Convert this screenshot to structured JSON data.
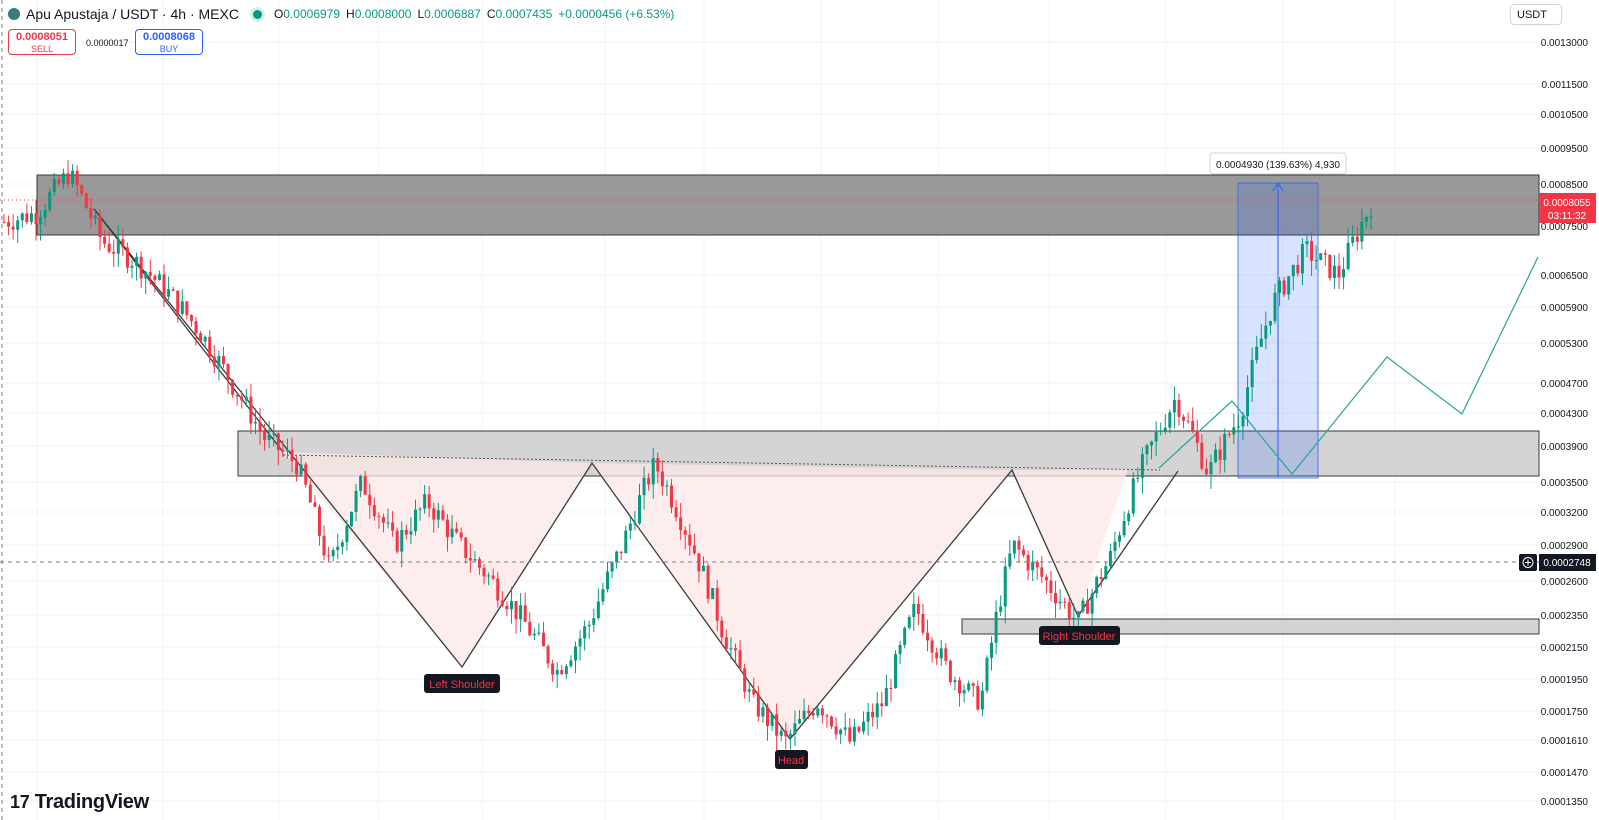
{
  "header": {
    "symbol": "Apu Apustaja / USDT · 4h · MEXC",
    "o_label": "O",
    "o_value": "0.0006979",
    "h_label": "H",
    "h_value": "0.0008000",
    "l_label": "L",
    "l_value": "0.0006887",
    "c_label": "C",
    "c_value": "0.0007435",
    "change": "+0.0000456 (+6.53%)",
    "status_color": "#089981"
  },
  "trade": {
    "sell_price": "0.0008051",
    "sell_label": "SELL",
    "spread": "0.0000017",
    "buy_price": "0.0008068",
    "buy_label": "BUY"
  },
  "currency_selector": "USDT",
  "logo_text": "TradingView",
  "chart_data": {
    "type": "candlestick",
    "timeframe": "4h",
    "price_axis_ticks": [
      "0.0013000",
      "0.0011500",
      "0.0010500",
      "0.0009500",
      "0.0008500",
      "0.0007500",
      "0.0006500",
      "0.0005900",
      "0.0005300",
      "0.0004700",
      "0.0004300",
      "0.0003900",
      "0.0003500",
      "0.0003200",
      "0.0002900",
      "0.0002600",
      "0.0002350",
      "0.0002150",
      "0.0001950",
      "0.0001750",
      "0.0001610",
      "0.0001470",
      "0.0001350"
    ],
    "current_price": {
      "value": "0.0008055",
      "countdown": "03:11:32",
      "color": "#f23645"
    },
    "crosshair_price": "0.0002748",
    "measure_label": "0.0004930 (139.63%) 4,930",
    "price_path": [
      0.00076,
      0.00078,
      0.00088,
      0.00072,
      0.00068,
      0.00062,
      0.00055,
      0.00047,
      0.0004,
      0.00037,
      0.00027,
      0.00035,
      0.00029,
      0.00033,
      0.00029,
      0.00026,
      0.00023,
      0.0002,
      0.00023,
      0.00029,
      0.00037,
      0.0003,
      0.00023,
      0.00018,
      0.00016,
      0.00018,
      0.00016,
      0.00018,
      0.00024,
      0.0002,
      0.00018,
      0.00029,
      0.00026,
      0.00023,
      0.00028,
      0.00037,
      0.00045,
      0.00036,
      0.00043,
      0.0006,
      0.0007,
      0.00065,
      0.0008
    ],
    "pattern_labels": {
      "left_shoulder": "Left Shoulder",
      "head": "Head",
      "right_shoulder": "Right Shoulder"
    },
    "pattern_prices": {
      "left_shoulder": 0.000198,
      "head": 0.00016,
      "right_shoulder": 0.000231,
      "neckline_left": 0.000366,
      "neckline_right": 0.000362
    },
    "zones": [
      {
        "name": "resistance-top",
        "top": 0.000877,
        "bottom": 0.000724,
        "color": "#7f7f7f"
      },
      {
        "name": "neckline-zone",
        "top": 0.000406,
        "bottom": 0.000355,
        "color": "#c2c2c2"
      },
      {
        "name": "right-shoulder-support",
        "top": 0.000229,
        "bottom": 0.000219,
        "color": "#c2c2c2"
      }
    ],
    "projection_prices": [
      0.00045,
      0.00036,
      0.0005,
      0.00043,
      0.00067
    ],
    "colors": {
      "up": "#089981",
      "down": "#f23645",
      "pattern_fill": "#fde7e7",
      "measure_fill": "#2962ff",
      "projection": "#26a69a"
    }
  }
}
